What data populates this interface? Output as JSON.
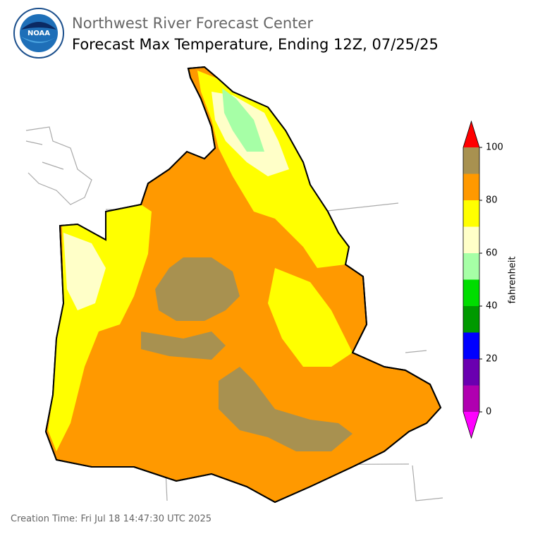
{
  "header": {
    "org": "Northwest River Forecast Center",
    "title": "Forecast Max Temperature, Ending 12Z, 07/25/25"
  },
  "colorbar": {
    "label": "fahrenheit",
    "lim": [
      0,
      100
    ],
    "ticks": [
      0,
      20,
      40,
      60,
      80,
      100
    ],
    "bins": [
      0,
      10,
      20,
      30,
      40,
      50,
      60,
      70,
      80,
      90,
      100
    ],
    "colors": [
      "#b000b0",
      "#6a00b0",
      "#0000ff",
      "#009900",
      "#00dd00",
      "#a6ffa6",
      "#ffffc8",
      "#ffff00",
      "#ff9900",
      "#a89150"
    ],
    "under_color": "#ff00ff",
    "over_color": "#ff0000"
  },
  "footer": {
    "creation_time": "Creation Time: Fri Jul 18 14:47:30 UTC 2025"
  }
}
